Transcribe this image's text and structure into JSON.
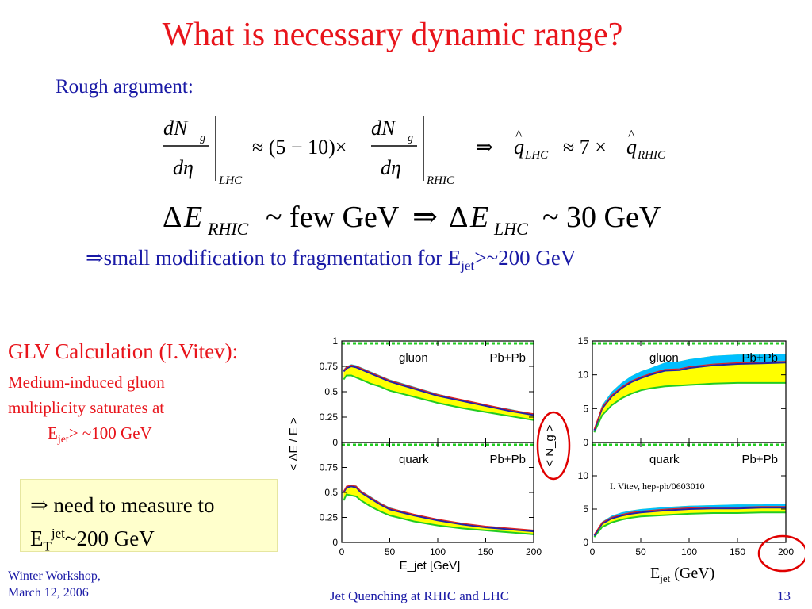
{
  "slide": {
    "title": "What is necessary dynamic range?",
    "rough": "Rough argument:",
    "eq1": {
      "num": "dN",
      "sub_g": "g",
      "den": "dη",
      "lhc": "LHC",
      "rhic": "RHIC",
      "approx_factor": "≈ (5 − 10)×",
      "implies": "⇒",
      "q_lhc": "LHC",
      "q_rhic": "RHIC",
      "q_rel": "≈ 7 ×"
    },
    "eq2": {
      "delta": "Δ",
      "E": "E",
      "rhic": "RHIC",
      "few": "~ few GeV",
      "implies": "⇒",
      "lhc": "LHC",
      "thirty": "~ 30 GeV"
    },
    "conclusion": {
      "arrow": "⇒",
      "text": "small modification to fragmentation for E",
      "sub": "jet",
      "tail": ">~200 GeV"
    },
    "glv": {
      "title": "GLV Calculation (I.Vitev):",
      "line1": "Medium-induced gluon",
      "line2": "multiplicity saturates at",
      "line3_prefix": "E",
      "line3_sub": "jet",
      "line3_tail": "> ~100 GeV"
    },
    "measure": {
      "arrow": "⇒",
      "line1": " need to measure to",
      "E": "E",
      "sub": "T",
      "sup": "jet",
      "tail": "~200 GeV"
    },
    "footer": {
      "left_line1": "Winter Workshop,",
      "left_line2": "March 12, 2006",
      "center": "Jet Quenching at RHIC and LHC",
      "page": "13"
    },
    "right_xlabel": {
      "E": "E",
      "sub": "jet",
      "tail": " (GeV)"
    },
    "citation": "I. Vitev, hep-ph/0603010",
    "colors": {
      "title": "#e8141b",
      "body": "#1a1aa6",
      "highlight_circle": "#e00000",
      "box": "#ffffcc"
    }
  },
  "chart_data": [
    {
      "type": "area",
      "panel": "left-top",
      "label": "gluon",
      "system": "Pb+Pb",
      "ylabel": "< ΔE / E >",
      "xlim": [
        0,
        200
      ],
      "ylim": [
        0,
        1
      ],
      "yticks": [
        "0",
        "0.25",
        "0.5",
        "0.75",
        "1"
      ],
      "x": [
        2,
        5,
        10,
        15,
        20,
        30,
        40,
        50,
        75,
        100,
        125,
        150,
        175,
        200
      ],
      "series": [
        {
          "values_low": [
            0.62,
            0.66,
            0.66,
            0.64,
            0.62,
            0.58,
            0.55,
            0.51,
            0.45,
            0.39,
            0.34,
            0.3,
            0.26,
            0.22
          ],
          "values_high": [
            0.72,
            0.75,
            0.77,
            0.76,
            0.74,
            0.7,
            0.66,
            0.62,
            0.55,
            0.48,
            0.42,
            0.37,
            0.33,
            0.28
          ],
          "color": "#ffff00"
        },
        {
          "values": [
            0.7,
            0.73,
            0.75,
            0.74,
            0.72,
            0.68,
            0.64,
            0.6,
            0.53,
            0.46,
            0.41,
            0.36,
            0.31,
            0.27
          ],
          "color": "#00bfff"
        }
      ]
    },
    {
      "type": "area",
      "panel": "left-bottom",
      "label": "quark",
      "system": "Pb+Pb",
      "xlabel": "E_jet [GeV]",
      "xlim": [
        0,
        200
      ],
      "ylim": [
        0,
        1
      ],
      "xticks": [
        "0",
        "50",
        "100",
        "150",
        "200"
      ],
      "yticks": [
        "0",
        "0.25",
        "0.5",
        "0.75",
        "1"
      ],
      "x": [
        2,
        5,
        10,
        15,
        20,
        30,
        40,
        50,
        75,
        100,
        125,
        150,
        175,
        200
      ],
      "series": [
        {
          "values_low": [
            0.42,
            0.48,
            0.47,
            0.46,
            0.42,
            0.36,
            0.31,
            0.27,
            0.21,
            0.17,
            0.14,
            0.12,
            0.1,
            0.08
          ],
          "values_high": [
            0.52,
            0.56,
            0.57,
            0.57,
            0.52,
            0.46,
            0.4,
            0.35,
            0.28,
            0.23,
            0.19,
            0.16,
            0.14,
            0.12
          ],
          "color": "#ffff00"
        },
        {
          "values": [
            0.5,
            0.55,
            0.56,
            0.55,
            0.5,
            0.44,
            0.38,
            0.33,
            0.27,
            0.22,
            0.18,
            0.15,
            0.13,
            0.11
          ],
          "color": "#00bfff"
        }
      ]
    },
    {
      "type": "area",
      "panel": "right-top",
      "label": "gluon",
      "system": "Pb+Pb",
      "ylabel": "< N_g >",
      "xlim": [
        0,
        200
      ],
      "ylim": [
        0,
        15
      ],
      "yticks": [
        "0",
        "5",
        "10",
        "15"
      ],
      "x": [
        2,
        10,
        20,
        30,
        40,
        50,
        60,
        75,
        90,
        100,
        125,
        150,
        175,
        200
      ],
      "series": [
        {
          "values_low": [
            1.5,
            4,
            5.5,
            6.5,
            7.2,
            7.7,
            8,
            8.3,
            8.4,
            8.5,
            8.7,
            8.8,
            8.8,
            8.8
          ],
          "values_high": [
            2,
            5.5,
            7.5,
            8.8,
            9.8,
            10.5,
            11,
            11.8,
            12,
            12.3,
            12.8,
            13,
            13,
            13.1
          ],
          "color": "#ffff00"
        },
        {
          "values": [
            1.8,
            5,
            6.8,
            8,
            8.9,
            9.5,
            10,
            10.6,
            10.7,
            11,
            11.4,
            11.6,
            11.7,
            11.8
          ],
          "color": "#00bfff"
        }
      ]
    },
    {
      "type": "area",
      "panel": "right-bottom",
      "label": "quark",
      "system": "Pb+Pb",
      "xlim": [
        0,
        200
      ],
      "ylim": [
        0,
        15
      ],
      "xticks": [
        "0",
        "50",
        "100",
        "150",
        "200"
      ],
      "yticks": [
        "0",
        "5",
        "10",
        "15"
      ],
      "x": [
        2,
        10,
        20,
        30,
        40,
        50,
        75,
        100,
        125,
        150,
        175,
        200
      ],
      "series": [
        {
          "values_low": [
            0.8,
            2.3,
            3,
            3.4,
            3.7,
            3.9,
            4.1,
            4.3,
            4.4,
            4.4,
            4.5,
            4.5
          ],
          "values_high": [
            1.2,
            3.1,
            4,
            4.5,
            4.8,
            5,
            5.3,
            5.5,
            5.6,
            5.7,
            5.7,
            5.8
          ],
          "color": "#ffff00"
        },
        {
          "values": [
            1,
            2.8,
            3.6,
            4,
            4.3,
            4.5,
            4.8,
            5,
            5.1,
            5.1,
            5.2,
            5.2
          ],
          "color": "#00bfff"
        }
      ]
    }
  ]
}
